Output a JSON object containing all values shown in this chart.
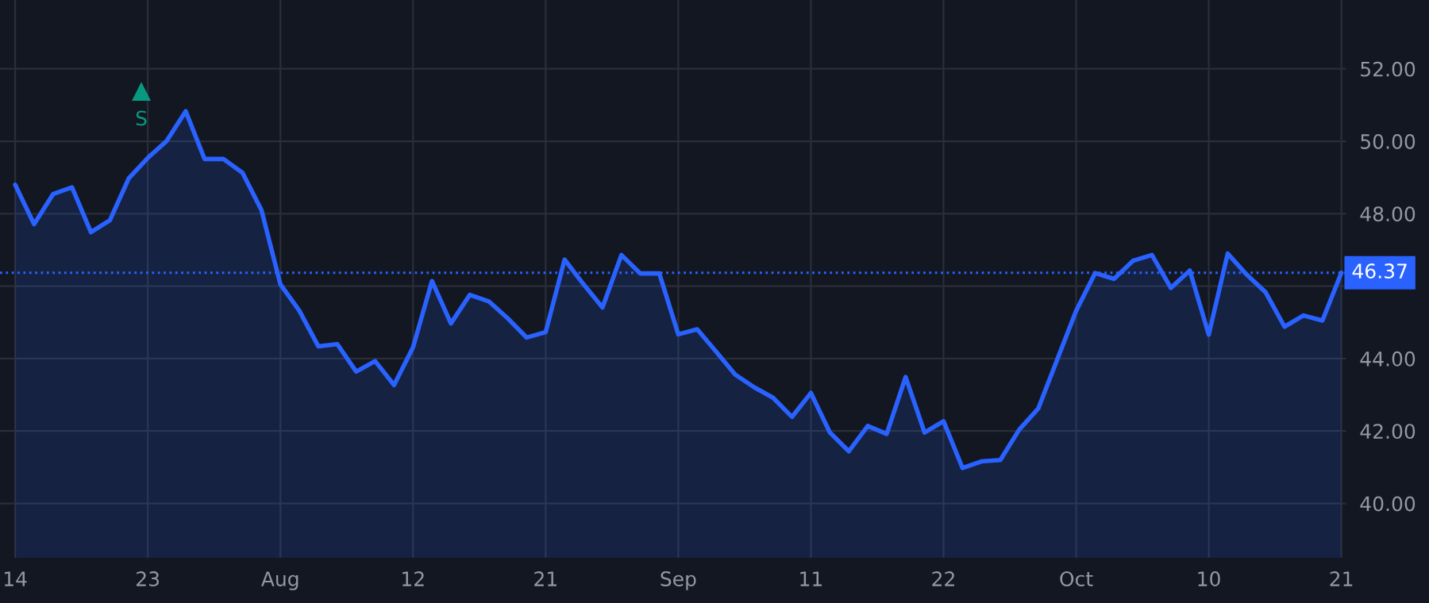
{
  "chart_data": {
    "type": "area",
    "categories": [
      "14",
      null,
      null,
      null,
      null,
      null,
      null,
      "23",
      null,
      null,
      null,
      null,
      null,
      null,
      "Aug",
      null,
      null,
      null,
      null,
      null,
      null,
      "12",
      null,
      null,
      null,
      null,
      null,
      null,
      "21",
      null,
      null,
      null,
      null,
      null,
      null,
      "Sep",
      null,
      null,
      null,
      null,
      null,
      null,
      "11",
      null,
      null,
      null,
      null,
      null,
      null,
      "22",
      null,
      null,
      null,
      null,
      null,
      null,
      "Oct",
      null,
      null,
      null,
      null,
      null,
      null,
      "10",
      null,
      null,
      null,
      null,
      null,
      null,
      "21"
    ],
    "series": [
      {
        "color": "#2962ff",
        "values": [
          48.8,
          47.71,
          48.54,
          48.73,
          47.49,
          47.82,
          48.98,
          49.54,
          50.01,
          50.83,
          49.51,
          49.51,
          49.13,
          48.1,
          46.05,
          45.32,
          44.34,
          44.4,
          43.64,
          43.93,
          43.27,
          44.31,
          46.14,
          44.97,
          45.76,
          45.58,
          45.11,
          44.58,
          44.73,
          46.73,
          46.05,
          45.41,
          46.86,
          46.35,
          46.35,
          44.67,
          44.81,
          44.19,
          43.56,
          43.21,
          42.92,
          42.39,
          43.05,
          41.96,
          41.44,
          42.14,
          41.92,
          43.49,
          41.96,
          42.27,
          40.98,
          41.16,
          41.2,
          42.04,
          42.62,
          43.97,
          45.32,
          46.36,
          46.2,
          46.7,
          46.86,
          45.95,
          46.43,
          44.66,
          46.9,
          46.32,
          45.83,
          44.88,
          45.19,
          45.05,
          46.37
        ]
      }
    ],
    "ylim": [
      38.5,
      53.9
    ],
    "yticks": [
      {
        "value": 40,
        "label": "40.00"
      },
      {
        "value": 42,
        "label": "42.00"
      },
      {
        "value": 44,
        "label": "44.00"
      },
      {
        "value": 46,
        "label": null
      },
      {
        "value": 48,
        "label": "48.00"
      },
      {
        "value": 50,
        "label": "50.00"
      },
      {
        "value": 52,
        "label": "52.00"
      }
    ],
    "grid": true,
    "ref_lines": [
      {
        "axis": "y",
        "value": 46.37,
        "label": "46.37",
        "color": "#2962ff",
        "line_style": "dotted"
      }
    ],
    "annotations": [
      "S"
    ]
  }
}
